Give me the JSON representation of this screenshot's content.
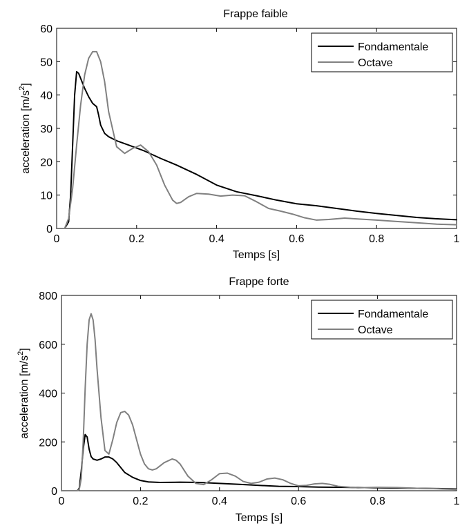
{
  "chart_data": [
    {
      "type": "line",
      "title": "Frappe faible",
      "xlabel": "Temps [s]",
      "ylabel": "acceleration [m/s",
      "ylabel_sup": "2",
      "ylabel_end": "]",
      "xlim": [
        0,
        1
      ],
      "ylim": [
        0,
        60
      ],
      "xticks": [
        0,
        0.2,
        0.4,
        0.6,
        0.8,
        1
      ],
      "xtick_labels": [
        "0",
        "0.2",
        "0.4",
        "0.6",
        "0.8",
        "1"
      ],
      "yticks": [
        0,
        10,
        20,
        30,
        40,
        50,
        60
      ],
      "ytick_labels": [
        "0",
        "10",
        "20",
        "30",
        "40",
        "50",
        "60"
      ],
      "grid": false,
      "legend_position": "top-right",
      "series": [
        {
          "name": "Fondamentale",
          "color": "#000000",
          "x": [
            0,
            0.02,
            0.03,
            0.035,
            0.04,
            0.045,
            0.05,
            0.055,
            0.06,
            0.07,
            0.08,
            0.09,
            0.1,
            0.105,
            0.11,
            0.12,
            0.13,
            0.15,
            0.18,
            0.22,
            0.26,
            0.3,
            0.35,
            0.4,
            0.45,
            0.5,
            0.55,
            0.6,
            0.65,
            0.7,
            0.75,
            0.8,
            0.85,
            0.9,
            0.95,
            1.0
          ],
          "y": [
            0,
            0,
            2,
            10,
            25,
            40,
            47,
            46.5,
            45,
            42,
            39.5,
            37.5,
            36.5,
            34,
            31,
            28.5,
            27.5,
            26.3,
            25,
            23.2,
            21,
            19,
            16.2,
            13,
            11,
            9.8,
            8.5,
            7.4,
            6.8,
            6,
            5.2,
            4.5,
            3.9,
            3.3,
            2.9,
            2.6
          ]
        },
        {
          "name": "Octave",
          "color": "#808080",
          "x": [
            0,
            0.02,
            0.03,
            0.04,
            0.05,
            0.06,
            0.07,
            0.08,
            0.09,
            0.1,
            0.11,
            0.12,
            0.13,
            0.15,
            0.17,
            0.19,
            0.21,
            0.23,
            0.25,
            0.27,
            0.29,
            0.3,
            0.31,
            0.33,
            0.35,
            0.38,
            0.41,
            0.44,
            0.47,
            0.5,
            0.53,
            0.56,
            0.59,
            0.62,
            0.65,
            0.68,
            0.72,
            0.76,
            0.8,
            0.85,
            0.9,
            0.95,
            1.0
          ],
          "y": [
            0,
            0,
            3,
            12,
            25,
            37,
            46,
            51,
            53,
            53,
            50,
            44,
            35,
            24.5,
            22.5,
            24,
            25,
            23,
            19,
            13,
            8.5,
            7.5,
            7.8,
            9.5,
            10.5,
            10.3,
            9.7,
            10,
            9.8,
            8,
            6,
            5.2,
            4.3,
            3.2,
            2.5,
            2.7,
            3.1,
            2.8,
            2.5,
            2.1,
            1.7,
            1.3,
            1.1
          ]
        }
      ]
    },
    {
      "type": "line",
      "title": "Frappe forte",
      "xlabel": "Temps [s]",
      "ylabel": "acceleration [m/s",
      "ylabel_sup": "2",
      "ylabel_end": "]",
      "xlim": [
        0,
        1
      ],
      "ylim": [
        0,
        800
      ],
      "xticks": [
        0,
        0.2,
        0.4,
        0.6,
        0.8,
        1
      ],
      "xtick_labels": [
        "0",
        "0.2",
        "0.4",
        "0.6",
        "0.8",
        "1"
      ],
      "yticks": [
        0,
        200,
        400,
        600,
        800
      ],
      "ytick_labels": [
        "0",
        "200",
        "400",
        "600",
        "800"
      ],
      "grid": false,
      "legend_position": "top-right",
      "series": [
        {
          "name": "Fondamentale",
          "color": "#000000",
          "x": [
            0,
            0.04,
            0.045,
            0.05,
            0.055,
            0.06,
            0.065,
            0.07,
            0.075,
            0.08,
            0.09,
            0.1,
            0.11,
            0.12,
            0.13,
            0.14,
            0.15,
            0.16,
            0.18,
            0.2,
            0.22,
            0.25,
            0.3,
            0.35,
            0.4,
            0.45,
            0.5,
            0.55,
            0.6,
            0.65,
            0.7,
            0.75,
            0.8,
            0.85,
            0.9,
            0.95,
            1.0
          ],
          "y": [
            0,
            0,
            10,
            80,
            170,
            230,
            220,
            170,
            140,
            130,
            125,
            130,
            138,
            138,
            130,
            115,
            95,
            75,
            55,
            42,
            36,
            34,
            35,
            34,
            30,
            26,
            22,
            18,
            17,
            15,
            14,
            13,
            12,
            11,
            10,
            9,
            7
          ]
        },
        {
          "name": "Octave",
          "color": "#808080",
          "x": [
            0,
            0.04,
            0.045,
            0.05,
            0.055,
            0.06,
            0.065,
            0.07,
            0.075,
            0.08,
            0.085,
            0.09,
            0.1,
            0.11,
            0.12,
            0.13,
            0.14,
            0.15,
            0.16,
            0.17,
            0.18,
            0.19,
            0.2,
            0.21,
            0.22,
            0.23,
            0.24,
            0.26,
            0.28,
            0.29,
            0.3,
            0.32,
            0.34,
            0.36,
            0.38,
            0.4,
            0.42,
            0.44,
            0.46,
            0.48,
            0.5,
            0.52,
            0.54,
            0.56,
            0.58,
            0.6,
            0.62,
            0.64,
            0.66,
            0.68,
            0.7,
            0.75,
            0.8,
            0.85,
            0.9,
            0.95,
            1.0
          ],
          "y": [
            0,
            0,
            5,
            50,
            200,
            420,
            600,
            700,
            725,
            700,
            620,
            500,
            300,
            165,
            150,
            210,
            280,
            320,
            325,
            310,
            270,
            210,
            150,
            110,
            90,
            85,
            90,
            115,
            130,
            125,
            110,
            60,
            30,
            25,
            45,
            70,
            72,
            60,
            38,
            30,
            35,
            48,
            52,
            45,
            30,
            20,
            22,
            28,
            30,
            26,
            18,
            12,
            14,
            13,
            10,
            8,
            5
          ]
        }
      ]
    }
  ]
}
